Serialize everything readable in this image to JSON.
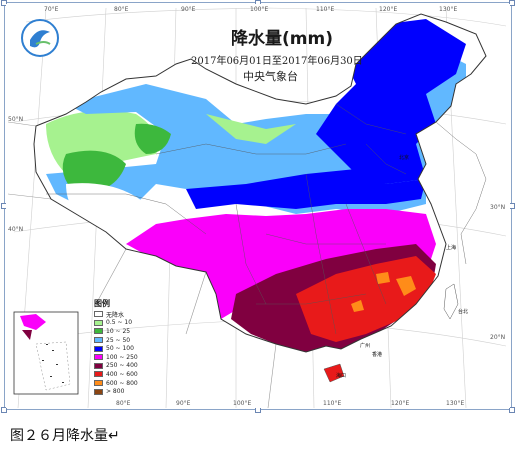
{
  "map": {
    "title": "降水量(mm)",
    "date_range": "2017年06月01日至2017年06月30日",
    "organization": "中央气象台",
    "longitude_ticks": [
      "70°E",
      "80°E",
      "90°E",
      "100°E",
      "110°E",
      "120°E",
      "130°E"
    ],
    "bottom_longitude_ticks": [
      "80°E",
      "90°E",
      "100°E",
      "110°E",
      "120°E",
      "130°E"
    ],
    "latitude_ticks": [
      "50°N",
      "40°N",
      "30°N",
      "20°N"
    ],
    "cities": [
      "北京",
      "上海",
      "广州",
      "香港",
      "台北",
      "海口"
    ]
  },
  "legend": {
    "title": "图例",
    "items": [
      {
        "label": "无降水",
        "color": "#ffffff"
      },
      {
        "label": "0.5 ~ 10",
        "color": "#a6f28f"
      },
      {
        "label": "10 ~ 25",
        "color": "#3db83d"
      },
      {
        "label": "25 ~ 50",
        "color": "#61b8ff"
      },
      {
        "label": "50 ~ 100",
        "color": "#0000fe"
      },
      {
        "label": "100 ~ 250",
        "color": "#fa00fa"
      },
      {
        "label": "250 ~ 400",
        "color": "#800040"
      },
      {
        "label": "400 ~ 600",
        "color": "#e81a1a"
      },
      {
        "label": "600 ~ 800",
        "color": "#ff8c19"
      },
      {
        "label": "> 800",
        "color": "#8b4513"
      }
    ]
  },
  "caption": "图２６月降水量↵"
}
